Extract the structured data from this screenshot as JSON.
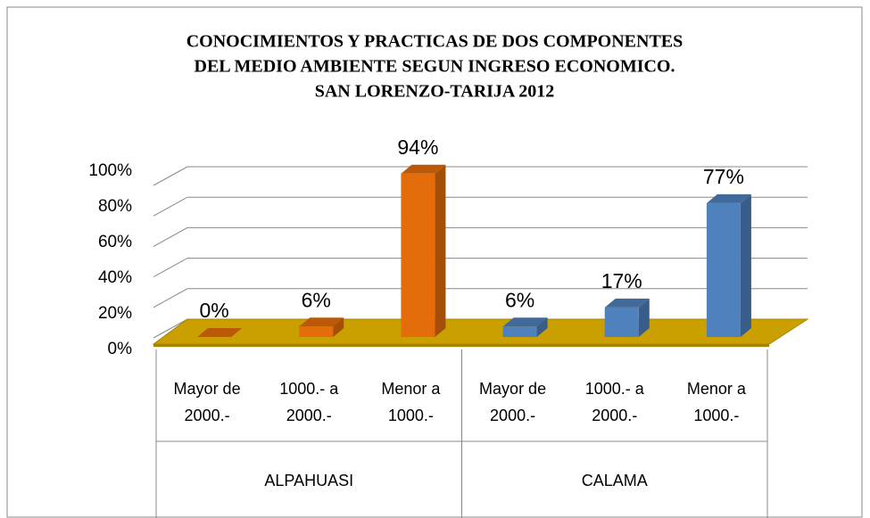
{
  "chart_data": {
    "type": "bar",
    "title": [
      "CONOCIMIENTOS Y PRACTICAS DE DOS COMPONENTES",
      "DEL MEDIO AMBIENTE SEGUN INGRESO ECONOMICO.",
      "SAN LORENZO-TARIJA 2012"
    ],
    "ylim": [
      0,
      100
    ],
    "yticks": [
      {
        "value": 0,
        "label": "0%"
      },
      {
        "value": 20,
        "label": "20%"
      },
      {
        "value": 40,
        "label": "40%"
      },
      {
        "value": 60,
        "label": "60%"
      },
      {
        "value": 80,
        "label": "80%"
      },
      {
        "value": 100,
        "label": "100%"
      }
    ],
    "grid": true,
    "groups": [
      {
        "name": "ALPAHUASI",
        "color": "#e46c0a",
        "categories": [
          [
            "Mayor de",
            "2000.-"
          ],
          [
            "1000.-  a",
            "2000.-"
          ],
          [
            "Menor a",
            "1000.-"
          ]
        ],
        "values": [
          0,
          6,
          94
        ],
        "value_labels": [
          "0%",
          "6%",
          "94%"
        ]
      },
      {
        "name": "CALAMA",
        "color": "#4f81bd",
        "categories": [
          [
            "Mayor de",
            "2000.-"
          ],
          [
            "1000.-  a",
            "2000.-"
          ],
          [
            "Menor a",
            "1000.-"
          ]
        ],
        "values": [
          6,
          17,
          77
        ],
        "value_labels": [
          "6%",
          "17%",
          "77%"
        ]
      }
    ]
  }
}
